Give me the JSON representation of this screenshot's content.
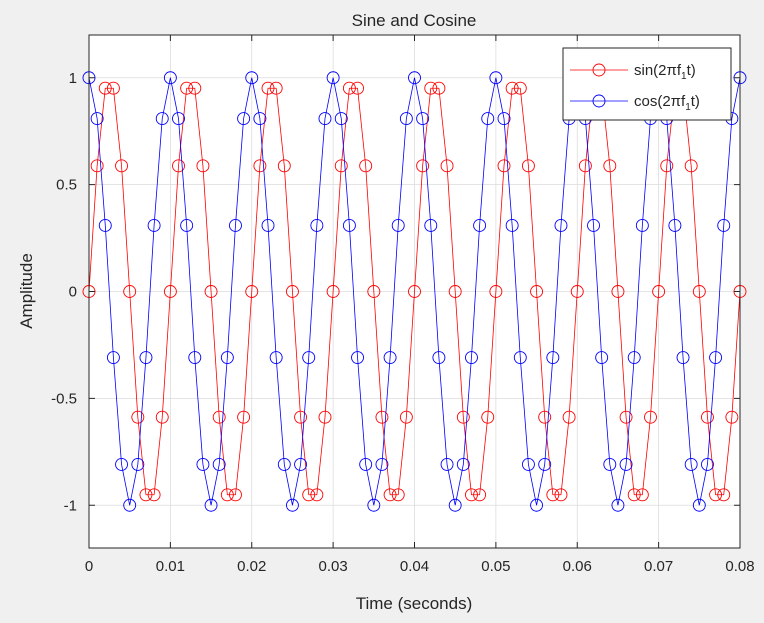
{
  "chart_data": {
    "type": "line",
    "title": "Sine and Cosine",
    "xlabel": "Time (seconds)",
    "ylabel": "Amplitude",
    "xlim": [
      0,
      0.08
    ],
    "ylim": [
      -1.2,
      1.2
    ],
    "x_ticks": [
      0,
      0.01,
      0.02,
      0.03,
      0.04,
      0.05,
      0.06,
      0.07,
      0.08
    ],
    "x_tick_labels": [
      "0",
      "0.01",
      "0.02",
      "0.03",
      "0.04",
      "0.05",
      "0.06",
      "0.07",
      "0.08"
    ],
    "y_ticks": [
      -1,
      -0.5,
      0,
      0.5,
      1
    ],
    "y_tick_labels": [
      "-1",
      "-0.5",
      "0",
      "0.5",
      "1"
    ],
    "grid": true,
    "legend_position": "top-right",
    "x": [
      0,
      0.001,
      0.002,
      0.003,
      0.004,
      0.005,
      0.006,
      0.007,
      0.008,
      0.009,
      0.01,
      0.011,
      0.012,
      0.013,
      0.014,
      0.015,
      0.016,
      0.017,
      0.018,
      0.019,
      0.02,
      0.021,
      0.022,
      0.023,
      0.024,
      0.025,
      0.026,
      0.027,
      0.028,
      0.029,
      0.03,
      0.031,
      0.032,
      0.033,
      0.034,
      0.035,
      0.036,
      0.037,
      0.038,
      0.039,
      0.04,
      0.041,
      0.042,
      0.043,
      0.044,
      0.045,
      0.046,
      0.047,
      0.048,
      0.049,
      0.05,
      0.051,
      0.052,
      0.053,
      0.054,
      0.055,
      0.056,
      0.057,
      0.058,
      0.059,
      0.06,
      0.061,
      0.062,
      0.063,
      0.064,
      0.065,
      0.066,
      0.067,
      0.068,
      0.069,
      0.07,
      0.071,
      0.072,
      0.073,
      0.074,
      0.075,
      0.076,
      0.077,
      0.078,
      0.079,
      0.08
    ],
    "series": [
      {
        "label_main": "sin(2πf",
        "label_sub": "1",
        "label_tail": "t)",
        "color": "#ff0000",
        "values": [
          0,
          0.588,
          0.951,
          0.951,
          0.588,
          0,
          -0.588,
          -0.951,
          -0.951,
          -0.588,
          0,
          0.588,
          0.951,
          0.951,
          0.588,
          0,
          -0.588,
          -0.951,
          -0.951,
          -0.588,
          0,
          0.588,
          0.951,
          0.951,
          0.588,
          0,
          -0.588,
          -0.951,
          -0.951,
          -0.588,
          0,
          0.588,
          0.951,
          0.951,
          0.588,
          0,
          -0.588,
          -0.951,
          -0.951,
          -0.588,
          0,
          0.588,
          0.951,
          0.951,
          0.588,
          0,
          -0.588,
          -0.951,
          -0.951,
          -0.588,
          0,
          0.588,
          0.951,
          0.951,
          0.588,
          0,
          -0.588,
          -0.951,
          -0.951,
          -0.588,
          0,
          0.588,
          0.951,
          0.951,
          0.588,
          0,
          -0.588,
          -0.951,
          -0.951,
          -0.588,
          0,
          0.588,
          0.951,
          0.951,
          0.588,
          0,
          -0.588,
          -0.951,
          -0.951,
          -0.588,
          0
        ]
      },
      {
        "label_main": "cos(2πf",
        "label_sub": "1",
        "label_tail": "t)",
        "color": "#0000ff",
        "values": [
          1,
          0.809,
          0.309,
          -0.309,
          -0.809,
          -1,
          -0.809,
          -0.309,
          0.309,
          0.809,
          1,
          0.809,
          0.309,
          -0.309,
          -0.809,
          -1,
          -0.809,
          -0.309,
          0.309,
          0.809,
          1,
          0.809,
          0.309,
          -0.309,
          -0.809,
          -1,
          -0.809,
          -0.309,
          0.309,
          0.809,
          1,
          0.809,
          0.309,
          -0.309,
          -0.809,
          -1,
          -0.809,
          -0.309,
          0.309,
          0.809,
          1,
          0.809,
          0.309,
          -0.309,
          -0.809,
          -1,
          -0.809,
          -0.309,
          0.309,
          0.809,
          1,
          0.809,
          0.309,
          -0.309,
          -0.809,
          -1,
          -0.809,
          -0.309,
          0.309,
          0.809,
          1,
          0.809,
          0.309,
          -0.309,
          -0.809,
          -1,
          -0.809,
          -0.309,
          0.309,
          0.809,
          1,
          0.809,
          0.309,
          -0.309,
          -0.809,
          -1,
          -0.809,
          -0.309,
          0.309,
          0.809,
          1
        ]
      }
    ]
  }
}
